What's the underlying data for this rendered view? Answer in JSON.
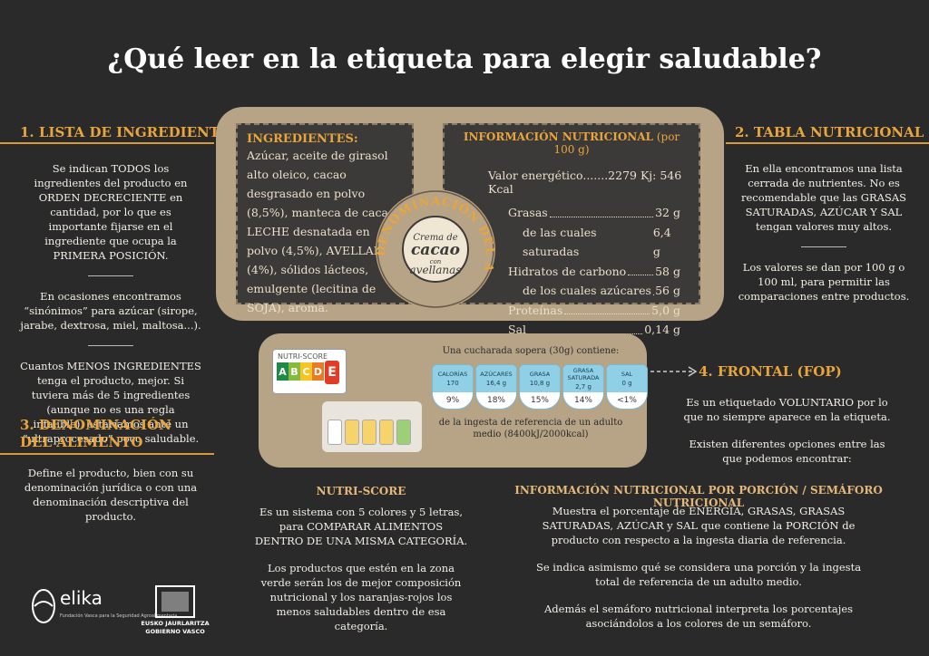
{
  "title": "¿Qué leer en la etiqueta para elegir saludable?",
  "ingredients_list": {
    "heading": "1. LISTA DE INGREDIENTES",
    "paragraphs": [
      "Se indican TODOS los ingredientes del producto en ORDEN DECRECIENTE en cantidad, por lo que es importante fijarse en el ingrediente que ocupa la PRIMERA POSICIÓN.",
      "En ocasiones encontramos “sinónimos” para azúcar (sirope, jarabe, dextrosa, miel, maltosa...).",
      "Cuantos MENOS INGREDIENTES tenga el producto, mejor. Si tuviera más de 5 ingredientes (aunque no es una regla infalible), estaríamos ante un “ultraprocesado” poco saludable."
    ]
  },
  "denomination": {
    "heading": "3. DENOMINACIÓN DEL ALIMENTO",
    "paragraphs": [
      "Define el producto, bien con su denominación jurídica o con una denominación descriptiva del producto."
    ]
  },
  "nutrition_table": {
    "heading": "2. TABLA NUTRICIONAL",
    "paragraphs": [
      "En ella encontramos una lista cerrada de nutrientes. No es recomendable que las GRASAS SATURADAS, AZÚCAR Y SAL tengan valores muy altos.",
      "Los valores se dan por 100 g o 100 ml, para permitir las comparaciones entre productos."
    ]
  },
  "frontal": {
    "heading": "4. FRONTAL (FOP)",
    "paragraphs": [
      "Es un etiquetado VOLUNTARIO por lo que no siempre aparece en la etiqueta.",
      "Existen diferentes opciones entre las que podemos encontrar:"
    ]
  },
  "label": {
    "ingredients_heading": "INGREDIENTES:",
    "ingredients_text": "Azúcar, aceite de girasol alto oleico, cacao desgrasado en polvo (8,5%), manteca de cacao, LECHE desnatada en polvo (4,5%), AVELLANAS (4%), sólidos lácteos, emulgente (lecitina de SOJA), aroma.",
    "nutrition_heading": "INFORMACIÓN NUTRICIONAL",
    "nutrition_unit": "(por 100 g)",
    "energy": "Valor energético.......2279 Kj: 546 Kcal",
    "rows": [
      {
        "label": "Grasas",
        "value": "32 g",
        "indent": false
      },
      {
        "label": "de las cuales saturadas",
        "value": "6,4 g",
        "indent": true
      },
      {
        "label": "Hidratos de carbono",
        "value": "58 g",
        "indent": false
      },
      {
        "label": "de los cuales azúcares",
        "value": "56 g",
        "indent": true
      },
      {
        "label": "Proteínas",
        "value": "5,0 g",
        "indent": false
      },
      {
        "label": "Sal",
        "value": "0,14 g",
        "indent": false
      }
    ],
    "seal_arc": "DENOMINACIÓN DEL ALIMENTO",
    "seal_lines": [
      "Crema de",
      "cacao",
      "con",
      "avellanas"
    ]
  },
  "fop": {
    "nutriscore_label": "NUTRI-SCORE",
    "letters": [
      "A",
      "B",
      "C",
      "D",
      "E"
    ],
    "letter_colors": [
      "#1e8a45",
      "#84bb3f",
      "#f5c623",
      "#ec7a24",
      "#e03c26"
    ],
    "portion": "Una cucharada sopera (30g) contiene:",
    "items": [
      {
        "name": "CALORÍAS",
        "amount": "170",
        "pct": "9%"
      },
      {
        "name": "AZÚCARES",
        "amount": "16,4 g",
        "pct": "18%"
      },
      {
        "name": "GRASA",
        "amount": "10,8 g",
        "pct": "15%"
      },
      {
        "name": "GRASA SATURADA",
        "amount": "2,7 g",
        "pct": "14%"
      },
      {
        "name": "SAL",
        "amount": "0 g",
        "pct": "<1%"
      }
    ],
    "footnote": "de la ingesta de referencia de un adulto medio (8400kJ/2000kcal)"
  },
  "nutriscore": {
    "heading": "NUTRI-SCORE",
    "paragraphs": [
      "Es un sistema con 5 colores y 5 letras, para COMPARAR ALIMENTOS DENTRO DE UNA MISMA CATEGORÍA.",
      "Los productos que estén en la zona verde serán los de mejor composición nutricional y los naranjas-rojos los menos saludables dentro de esa categoría."
    ]
  },
  "portion_info": {
    "heading": "INFORMACIÓN NUTRICIONAL POR PORCIÓN / SEMÁFORO NUTRICIONAL",
    "paragraphs": [
      "Muestra el porcentaje de ENERGÍA, GRASAS, GRASAS SATURADAS, AZÚCAR y SAL que contiene la PORCIÓN de producto con respecto a la ingesta diaria de referencia.",
      "Se indica asimismo qué se considera una porción y la ingesta total de referencia de un adulto medio.",
      "Además el semáforo nutricional interpreta los porcentajes asociándolos a los colores de un semáforo."
    ]
  },
  "logos": {
    "elika": "elika",
    "elika_sub": "Fundación Vasca para la Seguridad Agroalimentaria",
    "gov_1": "EUSKO JAURLARITZA",
    "gov_2": "GOBIERNO VASCO"
  }
}
